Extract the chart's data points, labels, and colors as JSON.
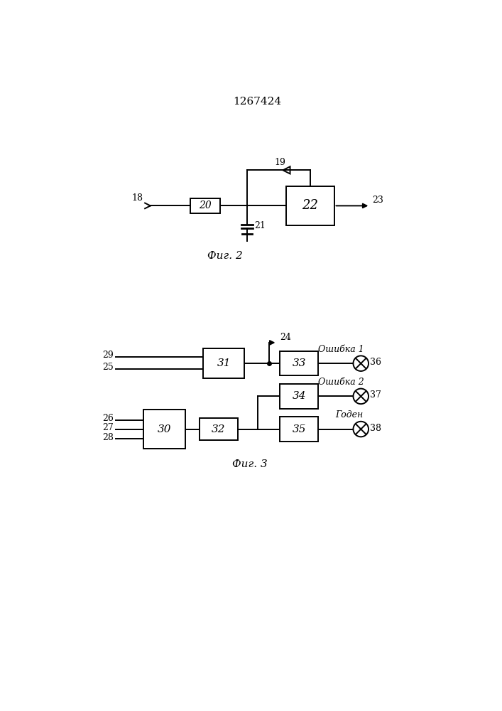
{
  "title": "1267424",
  "fig2_label": "Фиг. 2",
  "fig3_label": "Фиг. 3",
  "background_color": "#ffffff",
  "line_color": "#000000",
  "font_size_number": 9,
  "font_size_title": 11,
  "font_size_fig": 11
}
